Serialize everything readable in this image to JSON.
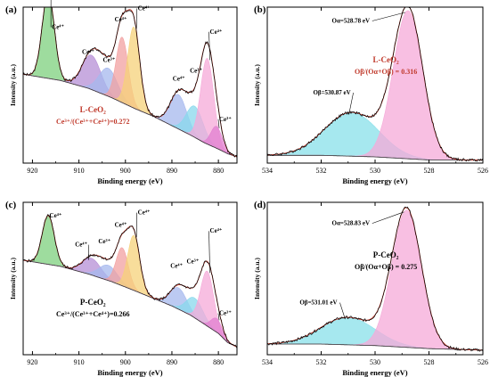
{
  "chart_data": [
    {
      "panel": "(a)",
      "type": "area",
      "xlabel": "Binding energy (eV)",
      "ylabel": "Intensity (a.u.)",
      "xlim": [
        922,
        876
      ],
      "xticks": [
        "920",
        "910",
        "900",
        "890",
        "880"
      ],
      "xtick_values": [
        920,
        910,
        900,
        890,
        880
      ],
      "ylim": [
        0,
        1
      ],
      "sample_label": "L-CeO₂",
      "ratio_label": "Ce³⁺/(Ce³⁺+Ce⁴⁺)=0.272",
      "text_color": "#c0392b",
      "peaks": [
        {
          "label": "Ce⁴⁺",
          "center": 916.6,
          "height": 0.55,
          "width": 1.3,
          "color": "#7ed07e",
          "lx": 914.5,
          "ly": 0.86
        },
        {
          "label": "Ce⁴⁺",
          "center": 907.3,
          "height": 0.22,
          "width": 2.0,
          "color": "#b58fd6",
          "lx": 908.0,
          "ly": 0.7
        },
        {
          "label": "Ce³⁺",
          "center": 903.7,
          "height": 0.18,
          "width": 2.0,
          "color": "#a6b8ee",
          "lx": 903.5,
          "ly": 0.65
        },
        {
          "label": "Ce⁴⁺",
          "center": 900.7,
          "height": 0.42,
          "width": 1.3,
          "color": "#f2a0a0",
          "lx": 901.0,
          "ly": 0.91
        },
        {
          "label": "Ce⁴⁺",
          "center": 898.2,
          "height": 0.52,
          "width": 1.3,
          "color": "#f6d27a",
          "lx": 896.0,
          "ly": 0.98
        },
        {
          "label": "Ce⁴⁺",
          "center": 888.6,
          "height": 0.22,
          "width": 1.8,
          "color": "#a6b8ee",
          "lx": 888.5,
          "ly": 0.53
        },
        {
          "label": "Ce³⁺",
          "center": 885.1,
          "height": 0.2,
          "width": 1.8,
          "color": "#88d8ec",
          "lx": 884.8,
          "ly": 0.58
        },
        {
          "label": "Ce⁴⁺",
          "center": 882.4,
          "height": 0.55,
          "width": 1.4,
          "color": "#f5a9d8",
          "lx": 880.5,
          "ly": 0.83
        },
        {
          "label": "Ce³⁺",
          "center": 880.4,
          "height": 0.14,
          "width": 1.2,
          "color": "#e27fd0",
          "lx": 878.5,
          "ly": 0.27
        }
      ],
      "background": {
        "x": [
          922,
          914,
          908,
          903,
          898,
          894,
          890,
          886,
          883,
          880,
          878,
          876
        ],
        "y": [
          0.57,
          0.53,
          0.48,
          0.42,
          0.35,
          0.3,
          0.24,
          0.18,
          0.13,
          0.09,
          0.06,
          0.04
        ]
      }
    },
    {
      "panel": "(b)",
      "type": "area",
      "xlabel": "Binding energy (eV)",
      "ylabel": "Intensity (a.u.)",
      "xlim": [
        534,
        526
      ],
      "xticks": [
        "534",
        "532",
        "530",
        "528",
        "526"
      ],
      "xtick_values": [
        534,
        532,
        530,
        528,
        526
      ],
      "ylim": [
        0,
        1
      ],
      "sample_label": "L-CeO₂",
      "ratio_label": "Oβ/(Oα+Oβ) = 0.316",
      "text_color": "#c0392b",
      "peaks": [
        {
          "label": "Oβ=530.87 eV",
          "center": 530.87,
          "height": 0.28,
          "width": 1.0,
          "color": "#88e0ea",
          "lx": 531.6,
          "ly": 0.44
        },
        {
          "label": "Oα=528.78 eV",
          "center": 528.78,
          "height": 0.95,
          "width": 0.55,
          "color": "#f5a9d8",
          "lx": 530.9,
          "ly": 0.9
        }
      ],
      "background": {
        "x": [
          534,
          532,
          530,
          528,
          526
        ],
        "y": [
          0.05,
          0.05,
          0.04,
          0.02,
          0.02
        ]
      }
    },
    {
      "panel": "(c)",
      "type": "area",
      "xlabel": "Binding energy (eV)",
      "ylabel": "Intensity (a.u.)",
      "xlim": [
        922,
        876
      ],
      "xticks": [
        "920",
        "910",
        "900",
        "890",
        "880"
      ],
      "xtick_values": [
        920,
        910,
        900,
        890,
        880
      ],
      "ylim": [
        0,
        1
      ],
      "sample_label": "P-CeO₂",
      "ratio_label": "Ce³⁺/(Ce³⁺+Ce⁴⁺)=0.266",
      "text_color": "#000000",
      "peaks": [
        {
          "label": "Ce⁴⁺",
          "center": 916.6,
          "height": 0.32,
          "width": 1.3,
          "color": "#7ed07e",
          "lx": 915.0,
          "ly": 0.9
        },
        {
          "label": "Ce⁴⁺",
          "center": 907.3,
          "height": 0.11,
          "width": 2.0,
          "color": "#b58fd6",
          "lx": 909.5,
          "ly": 0.71
        },
        {
          "label": "Ce³⁺",
          "center": 903.7,
          "height": 0.1,
          "width": 2.0,
          "color": "#a6b8ee",
          "lx": 904.5,
          "ly": 0.73
        },
        {
          "label": "Ce⁴⁺",
          "center": 900.7,
          "height": 0.25,
          "width": 1.3,
          "color": "#f2a0a0",
          "lx": 901.0,
          "ly": 0.84
        },
        {
          "label": "Ce⁴⁺",
          "center": 898.2,
          "height": 0.36,
          "width": 1.3,
          "color": "#f6d27a",
          "lx": 896.0,
          "ly": 0.92
        },
        {
          "label": "Ce⁴⁺",
          "center": 888.6,
          "height": 0.14,
          "width": 1.8,
          "color": "#a6b8ee",
          "lx": 889.0,
          "ly": 0.57
        },
        {
          "label": "Ce³⁺",
          "center": 885.1,
          "height": 0.13,
          "width": 1.8,
          "color": "#88d8ec",
          "lx": 885.5,
          "ly": 0.6
        },
        {
          "label": "Ce⁴⁺",
          "center": 882.4,
          "height": 0.36,
          "width": 1.4,
          "color": "#f5a9d8",
          "lx": 880.5,
          "ly": 0.8
        },
        {
          "label": "Ce³⁺",
          "center": 880.4,
          "height": 0.09,
          "width": 1.2,
          "color": "#e27fd0",
          "lx": 878.5,
          "ly": 0.26
        }
      ],
      "background": {
        "x": [
          922,
          914,
          908,
          903,
          898,
          894,
          890,
          886,
          883,
          880,
          878,
          876
        ],
        "y": [
          0.62,
          0.58,
          0.53,
          0.48,
          0.42,
          0.37,
          0.32,
          0.26,
          0.2,
          0.14,
          0.08,
          0.05
        ]
      }
    },
    {
      "panel": "(d)",
      "type": "area",
      "xlabel": "Binding energy (eV)",
      "ylabel": "Intensity (a.u.)",
      "xlim": [
        534,
        526
      ],
      "xticks": [
        "534",
        "532",
        "530",
        "528",
        "526"
      ],
      "xtick_values": [
        534,
        532,
        530,
        528,
        526
      ],
      "ylim": [
        0,
        1
      ],
      "sample_label": "P-CeO₂",
      "ratio_label": "Oβ/(Oα+Oβ) = 0.275",
      "text_color": "#000000",
      "peaks": [
        {
          "label": "Oβ=531.01 eV",
          "center": 531.01,
          "height": 0.18,
          "width": 1.0,
          "color": "#88e0ea",
          "lx": 532.1,
          "ly": 0.33
        },
        {
          "label": "Oα=528.83 eV",
          "center": 528.83,
          "height": 0.9,
          "width": 0.55,
          "color": "#f5a9d8",
          "lx": 530.9,
          "ly": 0.85
        }
      ],
      "background": {
        "x": [
          534,
          532,
          530,
          528,
          526
        ],
        "y": [
          0.07,
          0.07,
          0.06,
          0.04,
          0.03
        ]
      }
    }
  ]
}
